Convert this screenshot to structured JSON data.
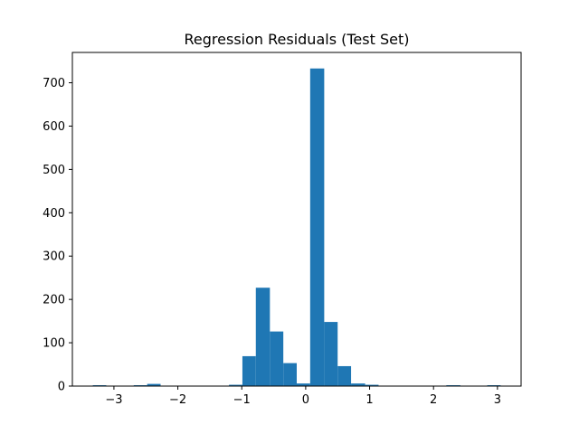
{
  "chart_data": {
    "type": "bar",
    "title": "Regression Residuals (Test Set)",
    "xlabel": "",
    "ylabel": "",
    "bar_color": "#1f77b4",
    "bins": [
      {
        "x0": -3.33,
        "x1": -3.12,
        "count": 2
      },
      {
        "x0": -3.12,
        "x1": -2.91,
        "count": 0
      },
      {
        "x0": -2.91,
        "x1": -2.69,
        "count": 1
      },
      {
        "x0": -2.69,
        "x1": -2.48,
        "count": 2
      },
      {
        "x0": -2.48,
        "x1": -2.27,
        "count": 5
      },
      {
        "x0": -2.27,
        "x1": -2.05,
        "count": 0
      },
      {
        "x0": -2.05,
        "x1": -1.84,
        "count": 0
      },
      {
        "x0": -1.84,
        "x1": -1.63,
        "count": 1
      },
      {
        "x0": -1.63,
        "x1": -1.42,
        "count": 1
      },
      {
        "x0": -1.42,
        "x1": -1.2,
        "count": 1
      },
      {
        "x0": -1.2,
        "x1": -0.99,
        "count": 3
      },
      {
        "x0": -0.99,
        "x1": -0.78,
        "count": 69
      },
      {
        "x0": -0.78,
        "x1": -0.56,
        "count": 227
      },
      {
        "x0": -0.56,
        "x1": -0.35,
        "count": 126
      },
      {
        "x0": -0.35,
        "x1": -0.14,
        "count": 53
      },
      {
        "x0": -0.14,
        "x1": 0.07,
        "count": 6
      },
      {
        "x0": 0.07,
        "x1": 0.29,
        "count": 733
      },
      {
        "x0": 0.29,
        "x1": 0.5,
        "count": 148
      },
      {
        "x0": 0.5,
        "x1": 0.71,
        "count": 46
      },
      {
        "x0": 0.71,
        "x1": 0.93,
        "count": 6
      },
      {
        "x0": 0.93,
        "x1": 1.14,
        "count": 3
      },
      {
        "x0": 1.14,
        "x1": 1.35,
        "count": 0
      },
      {
        "x0": 1.35,
        "x1": 1.56,
        "count": 0
      },
      {
        "x0": 1.56,
        "x1": 1.78,
        "count": 0
      },
      {
        "x0": 1.78,
        "x1": 1.99,
        "count": 0
      },
      {
        "x0": 1.99,
        "x1": 2.2,
        "count": 0
      },
      {
        "x0": 2.2,
        "x1": 2.42,
        "count": 2
      },
      {
        "x0": 2.42,
        "x1": 2.63,
        "count": 0
      },
      {
        "x0": 2.63,
        "x1": 2.84,
        "count": 0
      },
      {
        "x0": 2.84,
        "x1": 3.05,
        "count": 2
      }
    ],
    "xlim": [
      -3.65,
      3.37
    ],
    "ylim": [
      0,
      770
    ],
    "xticks": [
      -3,
      -2,
      -1,
      0,
      1,
      2,
      3
    ],
    "xtick_labels": [
      "−3",
      "−2",
      "−1",
      "0",
      "1",
      "2",
      "3"
    ],
    "yticks": [
      0,
      100,
      200,
      300,
      400,
      500,
      600,
      700
    ],
    "ytick_labels": [
      "0",
      "100",
      "200",
      "300",
      "400",
      "500",
      "600",
      "700"
    ],
    "grid": false,
    "legend": false
  }
}
